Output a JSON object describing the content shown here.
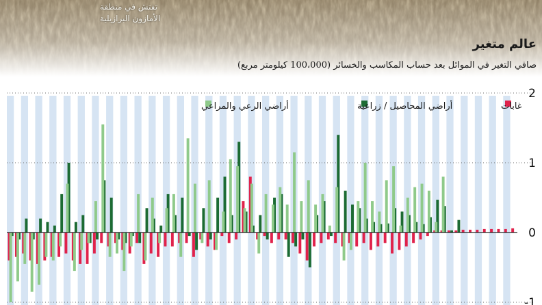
{
  "header": {
    "photo_caption_lines": [
      "تفتش في منطقة",
      "الأمازون البرازيلية"
    ],
    "title": "عالم متغير",
    "subtitle": "صافي التغير في الموائل بعد حساب المكاسب والخسائر (100،000 كيلومتر مربع)"
  },
  "colors": {
    "forests": "#e0224b",
    "crops": "#1c6b33",
    "pasture": "#8fca8a",
    "band_a": "#d6e4f3",
    "band_b": "#ffffff",
    "grid": "#6a6a6a"
  },
  "chart_data": {
    "type": "bar",
    "ylim": [
      -1,
      2
    ],
    "yticks": [
      {
        "value": 2,
        "label": "2"
      },
      {
        "value": 1,
        "label": "1"
      },
      {
        "value": 0,
        "label": "0"
      },
      {
        "value": -1,
        "label": "-1"
      }
    ],
    "legend": {
      "position": "top",
      "items": [
        {
          "key": "forests",
          "label": "غابات"
        },
        {
          "key": "crops",
          "label": "أراضي المحاصيل / زراعية"
        },
        {
          "key": "pasture",
          "label": "أراضي الرعي والمراعي"
        }
      ]
    },
    "series": [
      {
        "key": "forests",
        "name": "غابات",
        "values": [
          -0.4,
          -0.35,
          -0.3,
          -0.4,
          -0.45,
          -0.4,
          -0.35,
          -0.35,
          -0.3,
          -0.4,
          -0.45,
          -0.45,
          -0.3,
          -0.15,
          -0.2,
          -0.15,
          -0.25,
          -0.3,
          -0.15,
          -0.45,
          -0.3,
          -0.35,
          -0.2,
          -0.2,
          -0.15,
          -0.15,
          -0.35,
          -0.1,
          -0.2,
          -0.25,
          -0.05,
          -0.15,
          -0.1,
          0.45,
          0.8,
          -0.1,
          -0.05,
          -0.15,
          -0.1,
          -0.1,
          -0.15,
          -0.3,
          -0.4,
          -0.2,
          -0.15,
          -0.1,
          -0.15,
          -0.2,
          -0.15,
          -0.2,
          -0.15,
          -0.25,
          -0.2,
          -0.15,
          -0.3,
          -0.25,
          -0.2,
          -0.15,
          -0.1,
          -0.05,
          0.03,
          0.03,
          0.03,
          0.03,
          0.04,
          0.04,
          0.04,
          0.05,
          0.05,
          0.05,
          0.05,
          0.06
        ]
      },
      {
        "key": "crops",
        "name": "أراضي المحاصيل / زراعية",
        "values": [
          -0.05,
          -0.1,
          0.2,
          -0.1,
          0.2,
          0.15,
          0.1,
          0.55,
          1.0,
          0.15,
          0.25,
          -0.15,
          -0.1,
          0.75,
          0.5,
          -0.1,
          -0.15,
          -0.05,
          -0.15,
          0.35,
          0.2,
          0.1,
          0.55,
          0.25,
          0.5,
          -0.05,
          -0.25,
          0.35,
          -0.1,
          0.5,
          0.8,
          0.25,
          1.3,
          0.3,
          0.1,
          0.25,
          -0.1,
          0.5,
          0.55,
          -0.35,
          -0.2,
          -0.1,
          -0.5,
          0.25,
          0.45,
          -0.05,
          1.4,
          0.6,
          0.4,
          0.35,
          0.2,
          0.15,
          0.12,
          0.13,
          0.35,
          0.3,
          0.25,
          0.15,
          0.12,
          0.22,
          0.47,
          0.38,
          0.03,
          0.18
        ]
      },
      {
        "key": "pasture",
        "name": "أراضي الرعي والمراعي",
        "values": [
          -1.0,
          -0.7,
          -0.45,
          -0.85,
          -0.75,
          -0.35,
          -0.4,
          -0.2,
          0.7,
          -0.55,
          -0.25,
          -0.15,
          0.45,
          1.55,
          -0.35,
          -0.3,
          -0.55,
          -0.2,
          0.55,
          -0.4,
          0.5,
          -0.15,
          0.35,
          0.55,
          -0.35,
          1.35,
          0.7,
          -0.15,
          0.75,
          -0.25,
          0.3,
          1.05,
          0.95,
          0.35,
          0.7,
          -0.3,
          0.55,
          0.4,
          0.65,
          0.4,
          1.15,
          0.45,
          0.75,
          0.4,
          0.55,
          0.1,
          0.65,
          -0.4,
          -0.25,
          0.45,
          1.0,
          0.45,
          0.3,
          0.75,
          0.95,
          0.1,
          0.5,
          0.65,
          0.7,
          0.6,
          0.15,
          0.8
        ]
      }
    ]
  }
}
